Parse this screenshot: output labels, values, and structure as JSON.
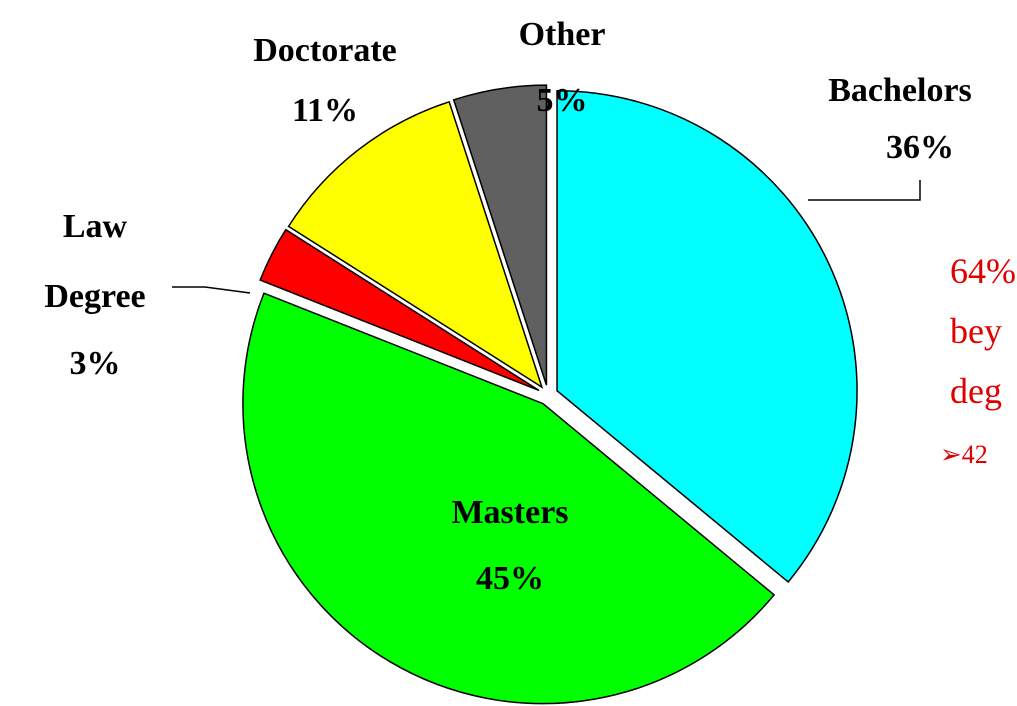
{
  "chart_data": {
    "type": "pie",
    "categories": [
      "Bachelors",
      "Masters",
      "Law Degree",
      "Doctorate",
      "Other"
    ],
    "values": [
      36,
      45,
      3,
      11,
      5
    ],
    "value_labels": [
      "36%",
      "45%",
      "3%",
      "11%",
      "5%"
    ],
    "colors": [
      "#00ffff",
      "#00ff00",
      "#ff0000",
      "#ffff00",
      "#606060"
    ],
    "annotations": [
      "64%",
      "bey",
      "deg",
      "➢42"
    ]
  }
}
